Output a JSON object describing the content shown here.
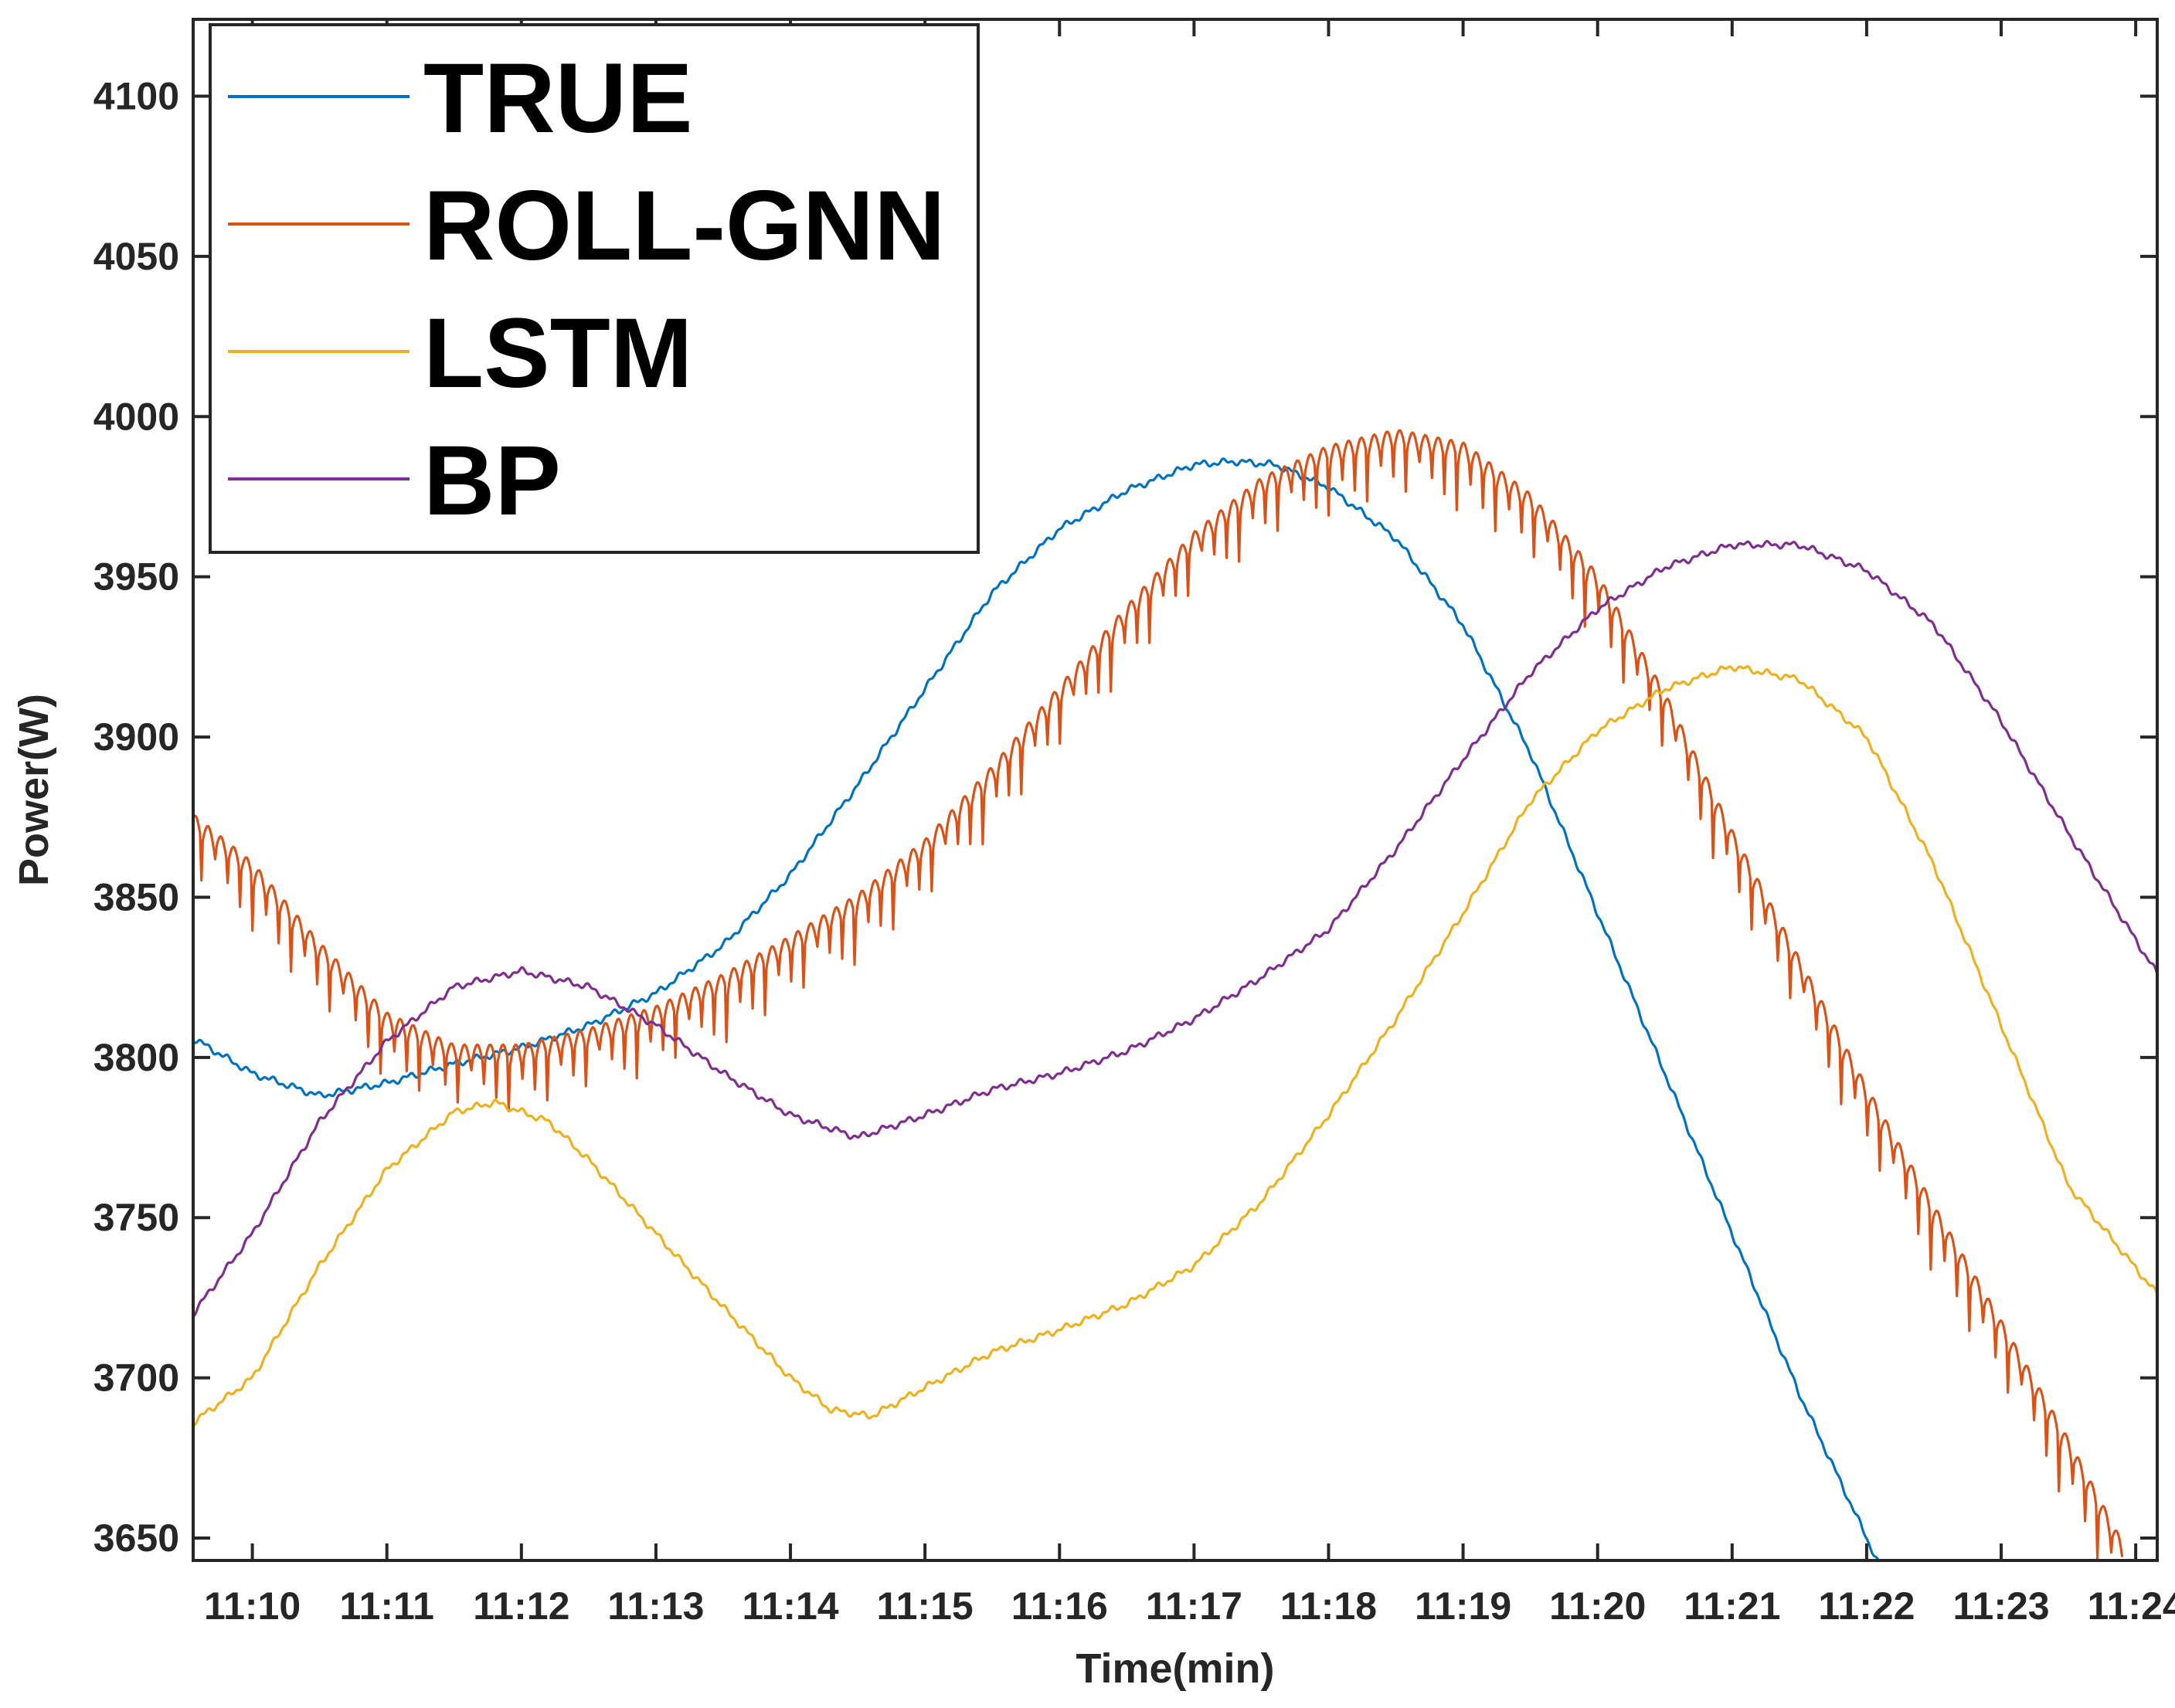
{
  "chart_data": {
    "type": "line",
    "title": "",
    "xlabel": "Time(min)",
    "ylabel": "Power(W)",
    "x_ticks": [
      "11:10",
      "11:11",
      "11:12",
      "11:13",
      "11:14",
      "11:15",
      "11:16",
      "11:17",
      "11:18",
      "11:19",
      "11:20",
      "11:21",
      "11:22",
      "11:23",
      "11:24"
    ],
    "xlim": [
      9.56,
      24.16
    ],
    "ylim": [
      3643,
      4124
    ],
    "y_ticks": [
      3650,
      3700,
      3750,
      3800,
      3850,
      3900,
      3950,
      4000,
      4050,
      4100
    ],
    "grid": false,
    "legend_position": "top-left",
    "series": [
      {
        "name": "TRUE",
        "color": "#0072BD",
        "points": [
          [
            9.56,
            3806
          ],
          [
            10.0,
            3795
          ],
          [
            10.5,
            3788
          ],
          [
            11.0,
            3792
          ],
          [
            11.5,
            3798
          ],
          [
            12.0,
            3803
          ],
          [
            12.5,
            3810
          ],
          [
            13.0,
            3820
          ],
          [
            13.5,
            3835
          ],
          [
            14.0,
            3857
          ],
          [
            14.5,
            3885
          ],
          [
            15.0,
            3915
          ],
          [
            15.5,
            3945
          ],
          [
            16.0,
            3965
          ],
          [
            16.5,
            3977
          ],
          [
            17.0,
            3985
          ],
          [
            17.3,
            3986
          ],
          [
            17.6,
            3985
          ],
          [
            18.0,
            3978
          ],
          [
            18.5,
            3962
          ],
          [
            19.0,
            3935
          ],
          [
            19.5,
            3895
          ],
          [
            20.0,
            3845
          ],
          [
            20.5,
            3795
          ],
          [
            21.0,
            3745
          ],
          [
            21.5,
            3695
          ],
          [
            22.0,
            3650
          ],
          [
            22.1,
            3641
          ]
        ]
      },
      {
        "name": "ROLL-GNN",
        "color": "#D95319",
        "ripple": true,
        "points": [
          [
            9.56,
            3870
          ],
          [
            10.0,
            3855
          ],
          [
            10.5,
            3830
          ],
          [
            11.0,
            3808
          ],
          [
            11.5,
            3798
          ],
          [
            12.0,
            3798
          ],
          [
            12.5,
            3803
          ],
          [
            13.0,
            3810
          ],
          [
            13.5,
            3820
          ],
          [
            14.0,
            3832
          ],
          [
            14.5,
            3845
          ],
          [
            15.0,
            3862
          ],
          [
            15.5,
            3885
          ],
          [
            16.0,
            3910
          ],
          [
            16.5,
            3935
          ],
          [
            17.0,
            3958
          ],
          [
            17.5,
            3975
          ],
          [
            18.0,
            3985
          ],
          [
            18.5,
            3990
          ],
          [
            19.0,
            3986
          ],
          [
            19.5,
            3970
          ],
          [
            20.0,
            3945
          ],
          [
            20.5,
            3908
          ],
          [
            21.0,
            3865
          ],
          [
            21.5,
            3825
          ],
          [
            22.0,
            3785
          ],
          [
            22.5,
            3748
          ],
          [
            23.0,
            3712
          ],
          [
            23.5,
            3675
          ],
          [
            23.9,
            3643
          ]
        ]
      },
      {
        "name": "LSTM",
        "color": "#EDB120",
        "points": [
          [
            9.56,
            3686
          ],
          [
            10.0,
            3700
          ],
          [
            10.5,
            3735
          ],
          [
            11.0,
            3765
          ],
          [
            11.5,
            3783
          ],
          [
            11.8,
            3786
          ],
          [
            12.2,
            3780
          ],
          [
            12.5,
            3768
          ],
          [
            13.0,
            3745
          ],
          [
            13.5,
            3722
          ],
          [
            14.0,
            3700
          ],
          [
            14.3,
            3690
          ],
          [
            14.6,
            3688
          ],
          [
            15.0,
            3697
          ],
          [
            15.5,
            3708
          ],
          [
            16.0,
            3715
          ],
          [
            16.5,
            3723
          ],
          [
            17.0,
            3735
          ],
          [
            17.5,
            3755
          ],
          [
            18.0,
            3782
          ],
          [
            18.5,
            3812
          ],
          [
            19.0,
            3845
          ],
          [
            19.5,
            3880
          ],
          [
            20.0,
            3902
          ],
          [
            20.5,
            3915
          ],
          [
            21.0,
            3922
          ],
          [
            21.5,
            3918
          ],
          [
            22.0,
            3900
          ],
          [
            22.5,
            3860
          ],
          [
            23.0,
            3810
          ],
          [
            23.5,
            3760
          ],
          [
            24.16,
            3726
          ]
        ]
      },
      {
        "name": "BP",
        "color": "#7E2F8E",
        "points": [
          [
            9.56,
            3720
          ],
          [
            10.0,
            3745
          ],
          [
            10.5,
            3780
          ],
          [
            11.0,
            3805
          ],
          [
            11.5,
            3822
          ],
          [
            12.0,
            3827
          ],
          [
            12.5,
            3822
          ],
          [
            13.0,
            3810
          ],
          [
            13.5,
            3795
          ],
          [
            14.0,
            3782
          ],
          [
            14.5,
            3775
          ],
          [
            15.0,
            3782
          ],
          [
            15.5,
            3790
          ],
          [
            16.0,
            3795
          ],
          [
            16.5,
            3802
          ],
          [
            17.0,
            3812
          ],
          [
            17.5,
            3825
          ],
          [
            18.0,
            3840
          ],
          [
            18.5,
            3865
          ],
          [
            19.0,
            3893
          ],
          [
            19.5,
            3920
          ],
          [
            20.0,
            3940
          ],
          [
            20.5,
            3953
          ],
          [
            21.0,
            3960
          ],
          [
            21.5,
            3960
          ],
          [
            22.0,
            3952
          ],
          [
            22.5,
            3935
          ],
          [
            23.0,
            3905
          ],
          [
            23.5,
            3870
          ],
          [
            24.16,
            3826
          ]
        ]
      }
    ]
  }
}
